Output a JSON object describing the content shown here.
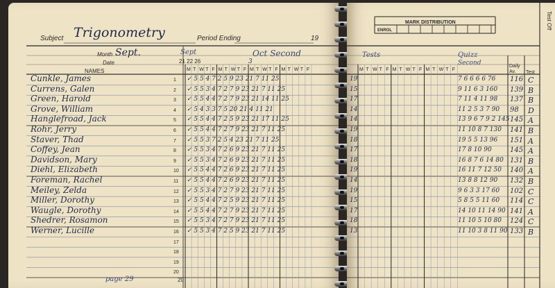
{
  "header": {
    "subject_label": "Subject",
    "subject_value": "Trigonometry",
    "period_label": "Period Ending",
    "period_year": "19",
    "mark_distribution": "MARK DISTRIBUTION",
    "enrol_label": "ENROL",
    "test_off_label": "Test Off"
  },
  "labels": {
    "month": "Month",
    "month_value": "Sept.",
    "date": "Date",
    "names": "NAMES",
    "left_month_sept": "Sept",
    "left_month_oct": "Oct Second",
    "left_dates": "21 22 26",
    "left_oct_date": "3",
    "right_tests": "Tests",
    "right_quizz": "Quizz",
    "right_second": "Second",
    "daily_av": "Daily Av.",
    "test": "Test",
    "footer_page": "page 29",
    "footer_num": "20"
  },
  "weekdays": [
    "M",
    "T",
    "W",
    "T",
    "F"
  ],
  "students": [
    {
      "num": "1",
      "name": "Cunkle, James",
      "grades": "✓ 5 5 4 7 2 5 9 23 21 7 11 25",
      "right_num": "19",
      "quiz": "7 6 6 6 6 76",
      "avg": "116",
      "test": "C"
    },
    {
      "num": "2",
      "name": "Currens, Galen",
      "grades": "✓ 5 5 3 4 7 2 7 9 23 21 7 11 25",
      "right_num": "15",
      "quiz": "9 11 6 3 160",
      "avg": "139",
      "test": "B"
    },
    {
      "num": "3",
      "name": "Green, Harold",
      "grades": "✓ 5 5 4 4 7 2 7 9 23 21 14 11 25",
      "right_num": "17",
      "quiz": "7 11 4 11 98",
      "avg": "137",
      "test": "B"
    },
    {
      "num": "4",
      "name": "Grove, William",
      "grades": "✓ 5 4 3 3 7 5 20 21 4 11 21",
      "right_num": "14",
      "quiz": "11 2 5 3 7 90",
      "avg": "98",
      "test": "D"
    },
    {
      "num": "5",
      "name": "Hanglefroad, Jack",
      "grades": "✓ 5 5 4 4 7 2 5 9 23 21 17 11 25",
      "right_num": "14",
      "quiz": "13 9 6 7 9 2 145",
      "avg": "145",
      "test": "A"
    },
    {
      "num": "6",
      "name": "Rohr, Jerry",
      "grades": "✓ 5 5 4 4 7 2 7 9 23 21 7 11 25",
      "right_num": "19",
      "quiz": "11 10 8 7 130",
      "avg": "141",
      "test": "B"
    },
    {
      "num": "7",
      "name": "Staver, Thad",
      "grades": "✓ 5 5 3 7 2 5 4 23 21 7 11 25",
      "right_num": "18",
      "quiz": "19 5 5 13 96",
      "avg": "151",
      "test": "A"
    },
    {
      "num": "8",
      "name": "Coffey, Jean",
      "grades": "✓ 5 5 3 4 7 2 6 9 23 21 7 11 25",
      "right_num": "17",
      "quiz": "17 8 10 90",
      "avg": "145",
      "test": "A"
    },
    {
      "num": "9",
      "name": "Davidson, Mary",
      "grades": "✓ 5 5 3 4 7 2 6 9 23 21 7 11 25",
      "right_num": "18",
      "quiz": "16 8 7 6 14 80",
      "avg": "131",
      "test": "B"
    },
    {
      "num": "10",
      "name": "Diehl, Elizabeth",
      "grades": "✓ 5 5 4 4 7 2 6 9 23 21 7 11 25",
      "right_num": "19",
      "quiz": "16 11 7 12 50",
      "avg": "140",
      "test": "A"
    },
    {
      "num": "11",
      "name": "Foreman, Rachel",
      "grades": "✓ 5 5 4 4 7 2 6 9 23 21 7 11 25",
      "right_num": "14",
      "quiz": "13 8 8 12 90",
      "avg": "132",
      "test": "B"
    },
    {
      "num": "12",
      "name": "Meiley, Zelda",
      "grades": "✓ 5 5 3 4 7 2 7 9 23 21 7 11 25",
      "right_num": "19",
      "quiz": "9 6 3 3 17 60",
      "avg": "102",
      "test": "C"
    },
    {
      "num": "13",
      "name": "Miller, Dorothy",
      "grades": "✓ 5 5 4 4 7 2 5 9 23 21 7 11 25",
      "right_num": "15",
      "quiz": "5 8 5 5 11 60",
      "avg": "114",
      "test": "C"
    },
    {
      "num": "14",
      "name": "Waugle, Dorothy",
      "grades": "✓ 5 5 4 4 7 2 7 9 23 21 7 11 25",
      "right_num": "17",
      "quiz": "14 10 11 14 90",
      "avg": "141",
      "test": "A"
    },
    {
      "num": "15",
      "name": "Shedrer, Rosamon",
      "grades": "✓ 5 5 3 4 7 2 7 9 23 21 7 11 25",
      "right_num": "18",
      "quiz": "11 10 5 10 80",
      "avg": "124",
      "test": "C"
    },
    {
      "num": "16",
      "name": "Werner, Lucille",
      "grades": "✓ 5 5 3 4 7 2 5 9 23 21 7 11 25",
      "right_num": "13",
      "quiz": "11 10 3 8 11 90",
      "avg": "133",
      "test": "B"
    }
  ],
  "empty_rows": [
    "17",
    "18",
    "19",
    "20"
  ]
}
